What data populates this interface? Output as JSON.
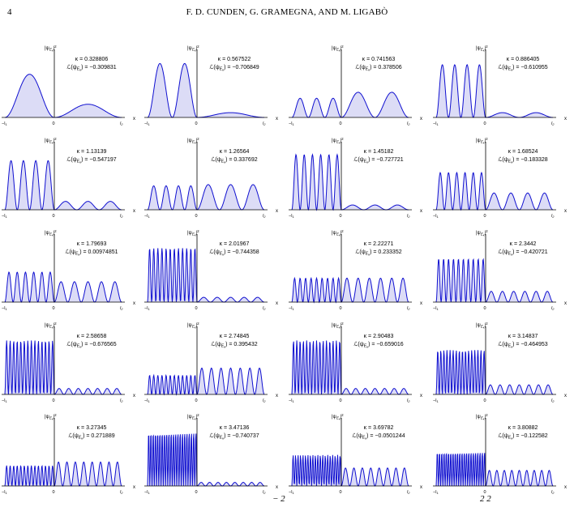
{
  "page_number": "4",
  "running_head": "F. D. CUNDEN, G. GRAMEGNA, AND M. LIGABÒ",
  "axis_labels": {
    "ylabel": "|ψ",
    "ylabel_sub": "E",
    "ylabel_subsub": "κ",
    "ylabel_sup": "2",
    "x": "x",
    "left": "−l",
    "left_sub": "1",
    "origin": "0",
    "right": "l",
    "right_sub": "2",
    "kappa_prefix": "κ = ",
    "L_prefix": "ℒ(ψ",
    "L_suffix": ") = "
  },
  "colors": {
    "curve": "#1010d0",
    "fill": "#dcdcf6",
    "axis": "#000000"
  },
  "footer_fragments": [
    "− 2",
    "2 2"
  ],
  "chart_data": {
    "type": "line",
    "description_of_layout": "grid of 5 rows x 4 columns of wavefunction density plots",
    "panels": [
      {
        "kappa": "0.328806",
        "L": "−0.309831",
        "left_humps": 1,
        "left_amp": 0.72,
        "right_humps": 1,
        "right_amp": 0.22,
        "ratio": 0.42
      },
      {
        "kappa": "0.567522",
        "L": "−0.706849",
        "left_humps": 2,
        "left_amp": 0.9,
        "right_humps": 1,
        "right_amp": 0.08,
        "ratio": 0.42
      },
      {
        "kappa": "0.741563",
        "L": "0.378506",
        "left_humps": 3,
        "left_amp": 0.32,
        "right_humps": 2,
        "right_amp": 0.42,
        "ratio": 0.42
      },
      {
        "kappa": "0.886405",
        "L": "−0.610955",
        "left_humps": 4,
        "left_amp": 0.88,
        "right_humps": 2,
        "right_amp": 0.08,
        "ratio": 0.42
      },
      {
        "kappa": "1.13139",
        "L": "−0.547197",
        "left_humps": 4,
        "left_amp": 0.82,
        "right_humps": 3,
        "right_amp": 0.14,
        "ratio": 0.42
      },
      {
        "kappa": "1.26564",
        "L": "0.337692",
        "left_humps": 4,
        "left_amp": 0.4,
        "right_humps": 3,
        "right_amp": 0.42,
        "ratio": 0.42
      },
      {
        "kappa": "1.45182",
        "L": "−0.727721",
        "left_humps": 6,
        "left_amp": 0.92,
        "right_humps": 3,
        "right_amp": 0.08,
        "ratio": 0.42
      },
      {
        "kappa": "1.68524",
        "L": "−0.183328",
        "left_humps": 6,
        "left_amp": 0.62,
        "right_humps": 4,
        "right_amp": 0.28,
        "ratio": 0.42
      },
      {
        "kappa": "1.79693",
        "L": "0.00974851",
        "left_humps": 6,
        "left_amp": 0.5,
        "right_humps": 5,
        "right_amp": 0.34,
        "ratio": 0.42
      },
      {
        "kappa": "2.01967",
        "L": "−0.744358",
        "left_humps": 12,
        "left_amp": 0.9,
        "right_humps": 5,
        "right_amp": 0.08,
        "ratio": 0.42
      },
      {
        "kappa": "2.22271",
        "L": "0.233352",
        "left_humps": 9,
        "left_amp": 0.4,
        "right_humps": 6,
        "right_amp": 0.4,
        "ratio": 0.42
      },
      {
        "kappa": "2.3442",
        "L": "−0.420721",
        "left_humps": 10,
        "left_amp": 0.72,
        "right_humps": 6,
        "right_amp": 0.18,
        "ratio": 0.42
      },
      {
        "kappa": "2.58658",
        "L": "−0.676565",
        "left_humps": 14,
        "left_amp": 0.9,
        "right_humps": 7,
        "right_amp": 0.1,
        "ratio": 0.42
      },
      {
        "kappa": "2.74845",
        "L": "0.395432",
        "left_humps": 12,
        "left_amp": 0.32,
        "right_humps": 7,
        "right_amp": 0.44,
        "ratio": 0.42
      },
      {
        "kappa": "2.90483",
        "L": "−0.659016",
        "left_humps": 15,
        "left_amp": 0.9,
        "right_humps": 7,
        "right_amp": 0.1,
        "ratio": 0.42
      },
      {
        "kappa": "3.14837",
        "L": "−0.464953",
        "left_humps": 16,
        "left_amp": 0.74,
        "right_humps": 7,
        "right_amp": 0.16,
        "ratio": 0.42
      },
      {
        "kappa": "3.27345",
        "L": "0.271889",
        "left_humps": 14,
        "left_amp": 0.34,
        "right_humps": 8,
        "right_amp": 0.4,
        "ratio": 0.42
      },
      {
        "kappa": "3.47136",
        "L": "−0.740737",
        "left_humps": 22,
        "left_amp": 0.92,
        "right_humps": 8,
        "right_amp": 0.06,
        "ratio": 0.42
      },
      {
        "kappa": "3.69782",
        "L": "−0.0501244",
        "left_humps": 20,
        "left_amp": 0.52,
        "right_humps": 8,
        "right_amp": 0.3,
        "ratio": 0.42
      },
      {
        "kappa": "3.80882",
        "L": "−0.122582",
        "left_humps": 22,
        "left_amp": 0.58,
        "right_humps": 9,
        "right_amp": 0.26,
        "ratio": 0.42
      }
    ]
  }
}
